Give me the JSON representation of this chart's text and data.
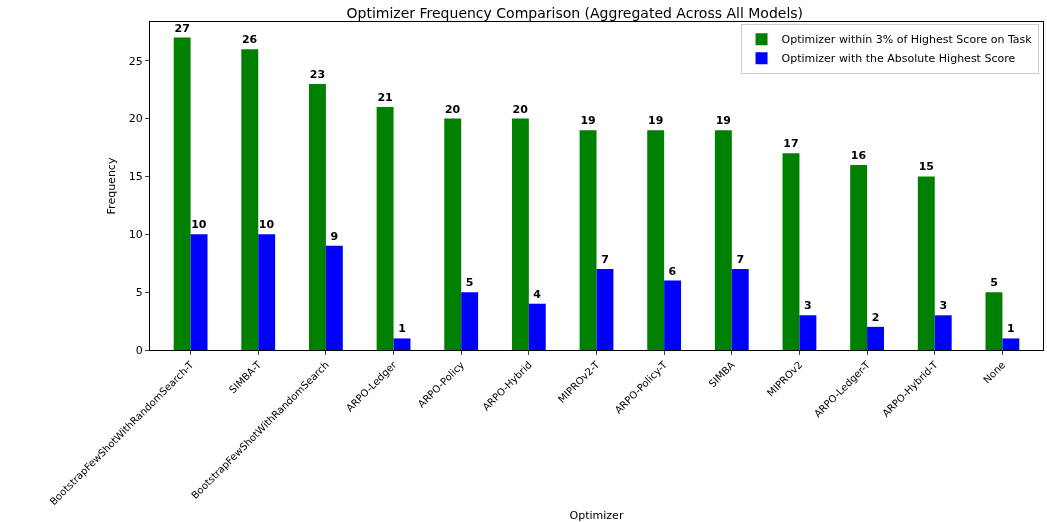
{
  "chart_data": {
    "type": "bar",
    "title": "Optimizer Frequency Comparison (Aggregated Across All Models)",
    "xlabel": "Optimizer",
    "ylabel": "Frequency",
    "categories": [
      "BootstrapFewShotWithRandomSearch-T",
      "SIMBA-T",
      "BootstrapFewShotWithRandomSearch",
      "ARPO-Ledger",
      "ARPO-Policy",
      "ARPO-Hybrid",
      "MIPROv2-T",
      "ARPO-Policy-T",
      "SIMBA",
      "MIPROv2",
      "ARPO-Ledger-T",
      "ARPO-Hybrid-T",
      "None"
    ],
    "series": [
      {
        "name": "Optimizer within 3% of Highest Score on Task",
        "color": "#008000",
        "values": [
          27,
          26,
          23,
          21,
          20,
          20,
          19,
          19,
          19,
          17,
          16,
          15,
          5
        ]
      },
      {
        "name": "Optimizer with the Absolute Highest Score",
        "color": "#0000ff",
        "values": [
          10,
          10,
          9,
          1,
          5,
          4,
          7,
          6,
          7,
          3,
          2,
          3,
          1
        ]
      }
    ],
    "ylim": [
      0,
      28.35
    ],
    "yticks": [
      0,
      5,
      10,
      15,
      20,
      25
    ],
    "grid": false,
    "legend": "top right",
    "data_labels": true
  }
}
